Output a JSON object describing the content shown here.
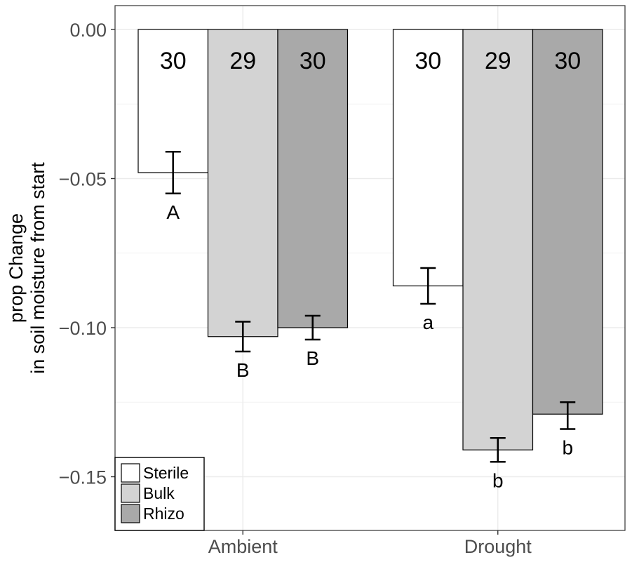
{
  "chart_data": {
    "type": "bar",
    "ylabel": [
      "prop Change",
      "in soil moisture from start"
    ],
    "xlabel": "",
    "categories": [
      "Ambient",
      "Drought"
    ],
    "ylim": [
      -0.168,
      0.008
    ],
    "yticks": [
      0.0,
      -0.05,
      -0.1,
      -0.15
    ],
    "ytick_labels": [
      "0.00",
      "−0.05",
      "−0.10",
      "−0.15"
    ],
    "grid": true,
    "legend": {
      "placement": "bottom-left"
    },
    "series": [
      {
        "name": "Sterile",
        "color": "#ffffff",
        "values": [
          -0.048,
          -0.086
        ],
        "err_low": [
          -0.055,
          -0.092
        ],
        "err_high": [
          -0.041,
          -0.08
        ],
        "n_labels": [
          "30",
          "30"
        ],
        "sig_labels": [
          "A",
          "a"
        ]
      },
      {
        "name": "Bulk",
        "color": "#d3d3d3",
        "values": [
          -0.103,
          -0.141
        ],
        "err_low": [
          -0.108,
          -0.145
        ],
        "err_high": [
          -0.098,
          -0.137
        ],
        "n_labels": [
          "29",
          "29"
        ],
        "sig_labels": [
          "B",
          "b"
        ]
      },
      {
        "name": "Rhizo",
        "color": "#a9a9a9",
        "values": [
          -0.1,
          -0.129
        ],
        "err_low": [
          -0.104,
          -0.134
        ],
        "err_high": [
          -0.096,
          -0.125
        ],
        "n_labels": [
          "30",
          "30"
        ],
        "sig_labels": [
          "B",
          "b"
        ]
      }
    ]
  }
}
